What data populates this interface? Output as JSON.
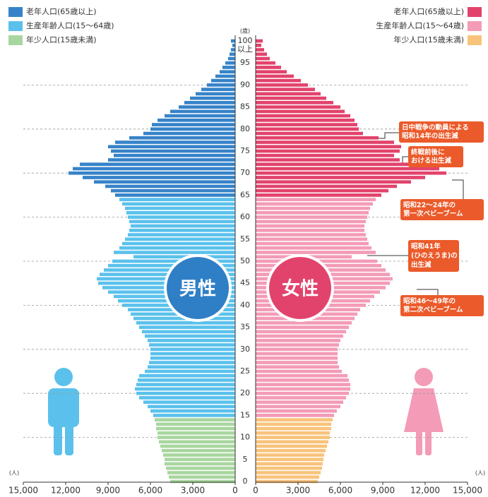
{
  "chart_data": {
    "type": "pyramid",
    "y_unit": "(歳)",
    "x_unit": "(人)",
    "top_label": "以上",
    "ylim": [
      0,
      100
    ],
    "yticks": [
      0,
      5,
      10,
      15,
      20,
      25,
      30,
      35,
      40,
      45,
      50,
      55,
      60,
      65,
      70,
      75,
      80,
      85,
      90,
      95,
      100
    ],
    "xlim": [
      0,
      15000
    ],
    "xticks": [
      {
        "value": 15000,
        "label": "15,000"
      },
      {
        "value": 12000,
        "label": "12,000"
      },
      {
        "value": 9000,
        "label": "9,000"
      },
      {
        "value": 6000,
        "label": "6,000"
      },
      {
        "value": 3000,
        "label": "3,000"
      },
      0
    ],
    "grid": true,
    "male": {
      "label": "男性",
      "series": [
        {
          "name": "老年人口(65歳以上)",
          "color": "#3683c9",
          "values": [
            null,
            null,
            null,
            null,
            null,
            null,
            null,
            null,
            null,
            null,
            null,
            null,
            null,
            null,
            null,
            null,
            null,
            null,
            null,
            null,
            null,
            null,
            null,
            null,
            null,
            null,
            null,
            null,
            null,
            null,
            null,
            null,
            null,
            null,
            null,
            null,
            null,
            null,
            null,
            null,
            null,
            null,
            null,
            null,
            null,
            null,
            null,
            null,
            null,
            null,
            null,
            null,
            null,
            null,
            null,
            null,
            null,
            null,
            null,
            null,
            null,
            null,
            null,
            null,
            null,
            8500,
            8800,
            9200,
            10000,
            10800,
            11800,
            11500,
            11000,
            9000,
            8600,
            8800,
            9000,
            8500,
            7500,
            6500,
            6000,
            5900,
            5500,
            5000,
            4600,
            4000,
            3600,
            3200,
            2800,
            2400,
            2000,
            1700,
            1400,
            1100,
            900,
            700,
            500,
            400,
            300,
            200,
            300
          ]
        },
        {
          "name": "生産年齢人口(15～64歳)",
          "color": "#5bc1ec",
          "values": [
            null,
            null,
            null,
            null,
            null,
            null,
            null,
            null,
            null,
            null,
            null,
            null,
            null,
            null,
            null,
            5800,
            6000,
            6200,
            6500,
            6800,
            7000,
            7100,
            7000,
            6900,
            6800,
            6400,
            6200,
            6100,
            6000,
            6000,
            6000,
            6100,
            6200,
            6400,
            6600,
            6800,
            7000,
            7200,
            7400,
            7600,
            8000,
            8300,
            8600,
            9000,
            9400,
            9700,
            9800,
            9600,
            9300,
            9000,
            8700,
            7200,
            8600,
            8200,
            8000,
            7800,
            7600,
            7500,
            7400,
            7500,
            7600,
            7700,
            7800,
            8000,
            8200,
            null,
            null,
            null,
            null,
            null,
            null,
            null,
            null,
            null,
            null,
            null,
            null,
            null,
            null,
            null,
            null,
            null,
            null,
            null,
            null,
            null,
            null,
            null,
            null,
            null,
            null,
            null,
            null,
            null,
            null,
            null,
            null,
            null,
            null,
            null,
            null
          ]
        },
        {
          "name": "年少人口(15歳未満)",
          "color": "#a9d6a0",
          "values": [
            4600,
            4700,
            4800,
            4900,
            5000,
            5000,
            5100,
            5200,
            5300,
            5400,
            5500,
            5500,
            5600,
            5600,
            5700,
            null,
            null,
            null,
            null,
            null,
            null,
            null,
            null,
            null,
            null,
            null,
            null,
            null,
            null,
            null,
            null,
            null,
            null,
            null,
            null,
            null,
            null,
            null,
            null,
            null,
            null,
            null,
            null,
            null,
            null,
            null,
            null,
            null,
            null,
            null,
            null,
            null,
            null,
            null,
            null,
            null,
            null,
            null,
            null,
            null,
            null,
            null,
            null,
            null,
            null,
            null,
            null,
            null,
            null,
            null,
            null,
            null,
            null,
            null,
            null,
            null,
            null,
            null,
            null,
            null,
            null,
            null,
            null,
            null,
            null,
            null,
            null,
            null,
            null,
            null,
            null,
            null,
            null,
            null,
            null,
            null,
            null,
            null,
            null,
            null,
            null
          ]
        }
      ]
    },
    "female": {
      "label": "女性",
      "series": [
        {
          "name": "老年人口(65歳以上)",
          "color": "#e2436c",
          "values": [
            null,
            null,
            null,
            null,
            null,
            null,
            null,
            null,
            null,
            null,
            null,
            null,
            null,
            null,
            null,
            null,
            null,
            null,
            null,
            null,
            null,
            null,
            null,
            null,
            null,
            null,
            null,
            null,
            null,
            null,
            null,
            null,
            null,
            null,
            null,
            null,
            null,
            null,
            null,
            null,
            null,
            null,
            null,
            null,
            null,
            null,
            null,
            null,
            null,
            null,
            null,
            null,
            null,
            null,
            null,
            null,
            null,
            null,
            null,
            null,
            null,
            null,
            null,
            null,
            null,
            8900,
            9400,
            10000,
            11000,
            12000,
            13500,
            13000,
            12200,
            10200,
            9800,
            10200,
            10300,
            9800,
            8700,
            7600,
            7300,
            7200,
            7000,
            6700,
            6300,
            6000,
            5500,
            5000,
            4600,
            4200,
            3700,
            3200,
            2700,
            2200,
            1800,
            1400,
            1000,
            800,
            600,
            400,
            500
          ]
        },
        {
          "name": "生産年齢人口(15～64歳)",
          "color": "#f39bb7",
          "values": [
            null,
            null,
            null,
            null,
            null,
            null,
            null,
            null,
            null,
            null,
            null,
            null,
            null,
            null,
            null,
            5550,
            5750,
            6000,
            6200,
            6400,
            6600,
            6700,
            6700,
            6600,
            6500,
            6100,
            5900,
            5800,
            5800,
            5800,
            5800,
            5900,
            6000,
            6200,
            6400,
            6600,
            6800,
            7000,
            7200,
            7400,
            7800,
            8100,
            8400,
            8800,
            9200,
            9500,
            9700,
            9500,
            9200,
            8900,
            8600,
            6800,
            8500,
            8200,
            8000,
            7900,
            7800,
            7700,
            7700,
            7800,
            7900,
            8000,
            8100,
            8300,
            8500,
            null,
            null,
            null,
            null,
            null,
            null,
            null,
            null,
            null,
            null,
            null,
            null,
            null,
            null,
            null,
            null,
            null,
            null,
            null,
            null,
            null,
            null,
            null,
            null,
            null,
            null,
            null,
            null,
            null,
            null,
            null,
            null,
            null,
            null,
            null,
            null
          ]
        },
        {
          "name": "年少人口(15歳未満)",
          "color": "#f8c37b",
          "values": [
            4400,
            4500,
            4600,
            4700,
            4750,
            4800,
            4850,
            4950,
            5050,
            5150,
            5250,
            5250,
            5350,
            5350,
            5450,
            null,
            null,
            null,
            null,
            null,
            null,
            null,
            null,
            null,
            null,
            null,
            null,
            null,
            null,
            null,
            null,
            null,
            null,
            null,
            null,
            null,
            null,
            null,
            null,
            null,
            null,
            null,
            null,
            null,
            null,
            null,
            null,
            null,
            null,
            null,
            null,
            null,
            null,
            null,
            null,
            null,
            null,
            null,
            null,
            null,
            null,
            null,
            null,
            null,
            null,
            null,
            null,
            null,
            null,
            null,
            null,
            null,
            null,
            null,
            null,
            null,
            null,
            null,
            null,
            null,
            null,
            null,
            null,
            null,
            null,
            null,
            null,
            null,
            null,
            null,
            null,
            null,
            null,
            null,
            null,
            null,
            null,
            null,
            null,
            null,
            null
          ]
        }
      ]
    },
    "annotations": [
      {
        "lines": [
          "日中戦争の動員による",
          "昭和14年の出生減"
        ]
      },
      {
        "lines": [
          "終戦前後に",
          "おける出生減"
        ]
      },
      {
        "lines": [
          "昭和22～24年の",
          "第一次ベビーブーム"
        ]
      },
      {
        "lines": [
          "昭和41年",
          "(ひのえうま)の",
          "出生減"
        ]
      },
      {
        "lines": [
          "昭和46～49年の",
          "第二次ベビーブーム"
        ]
      }
    ]
  }
}
